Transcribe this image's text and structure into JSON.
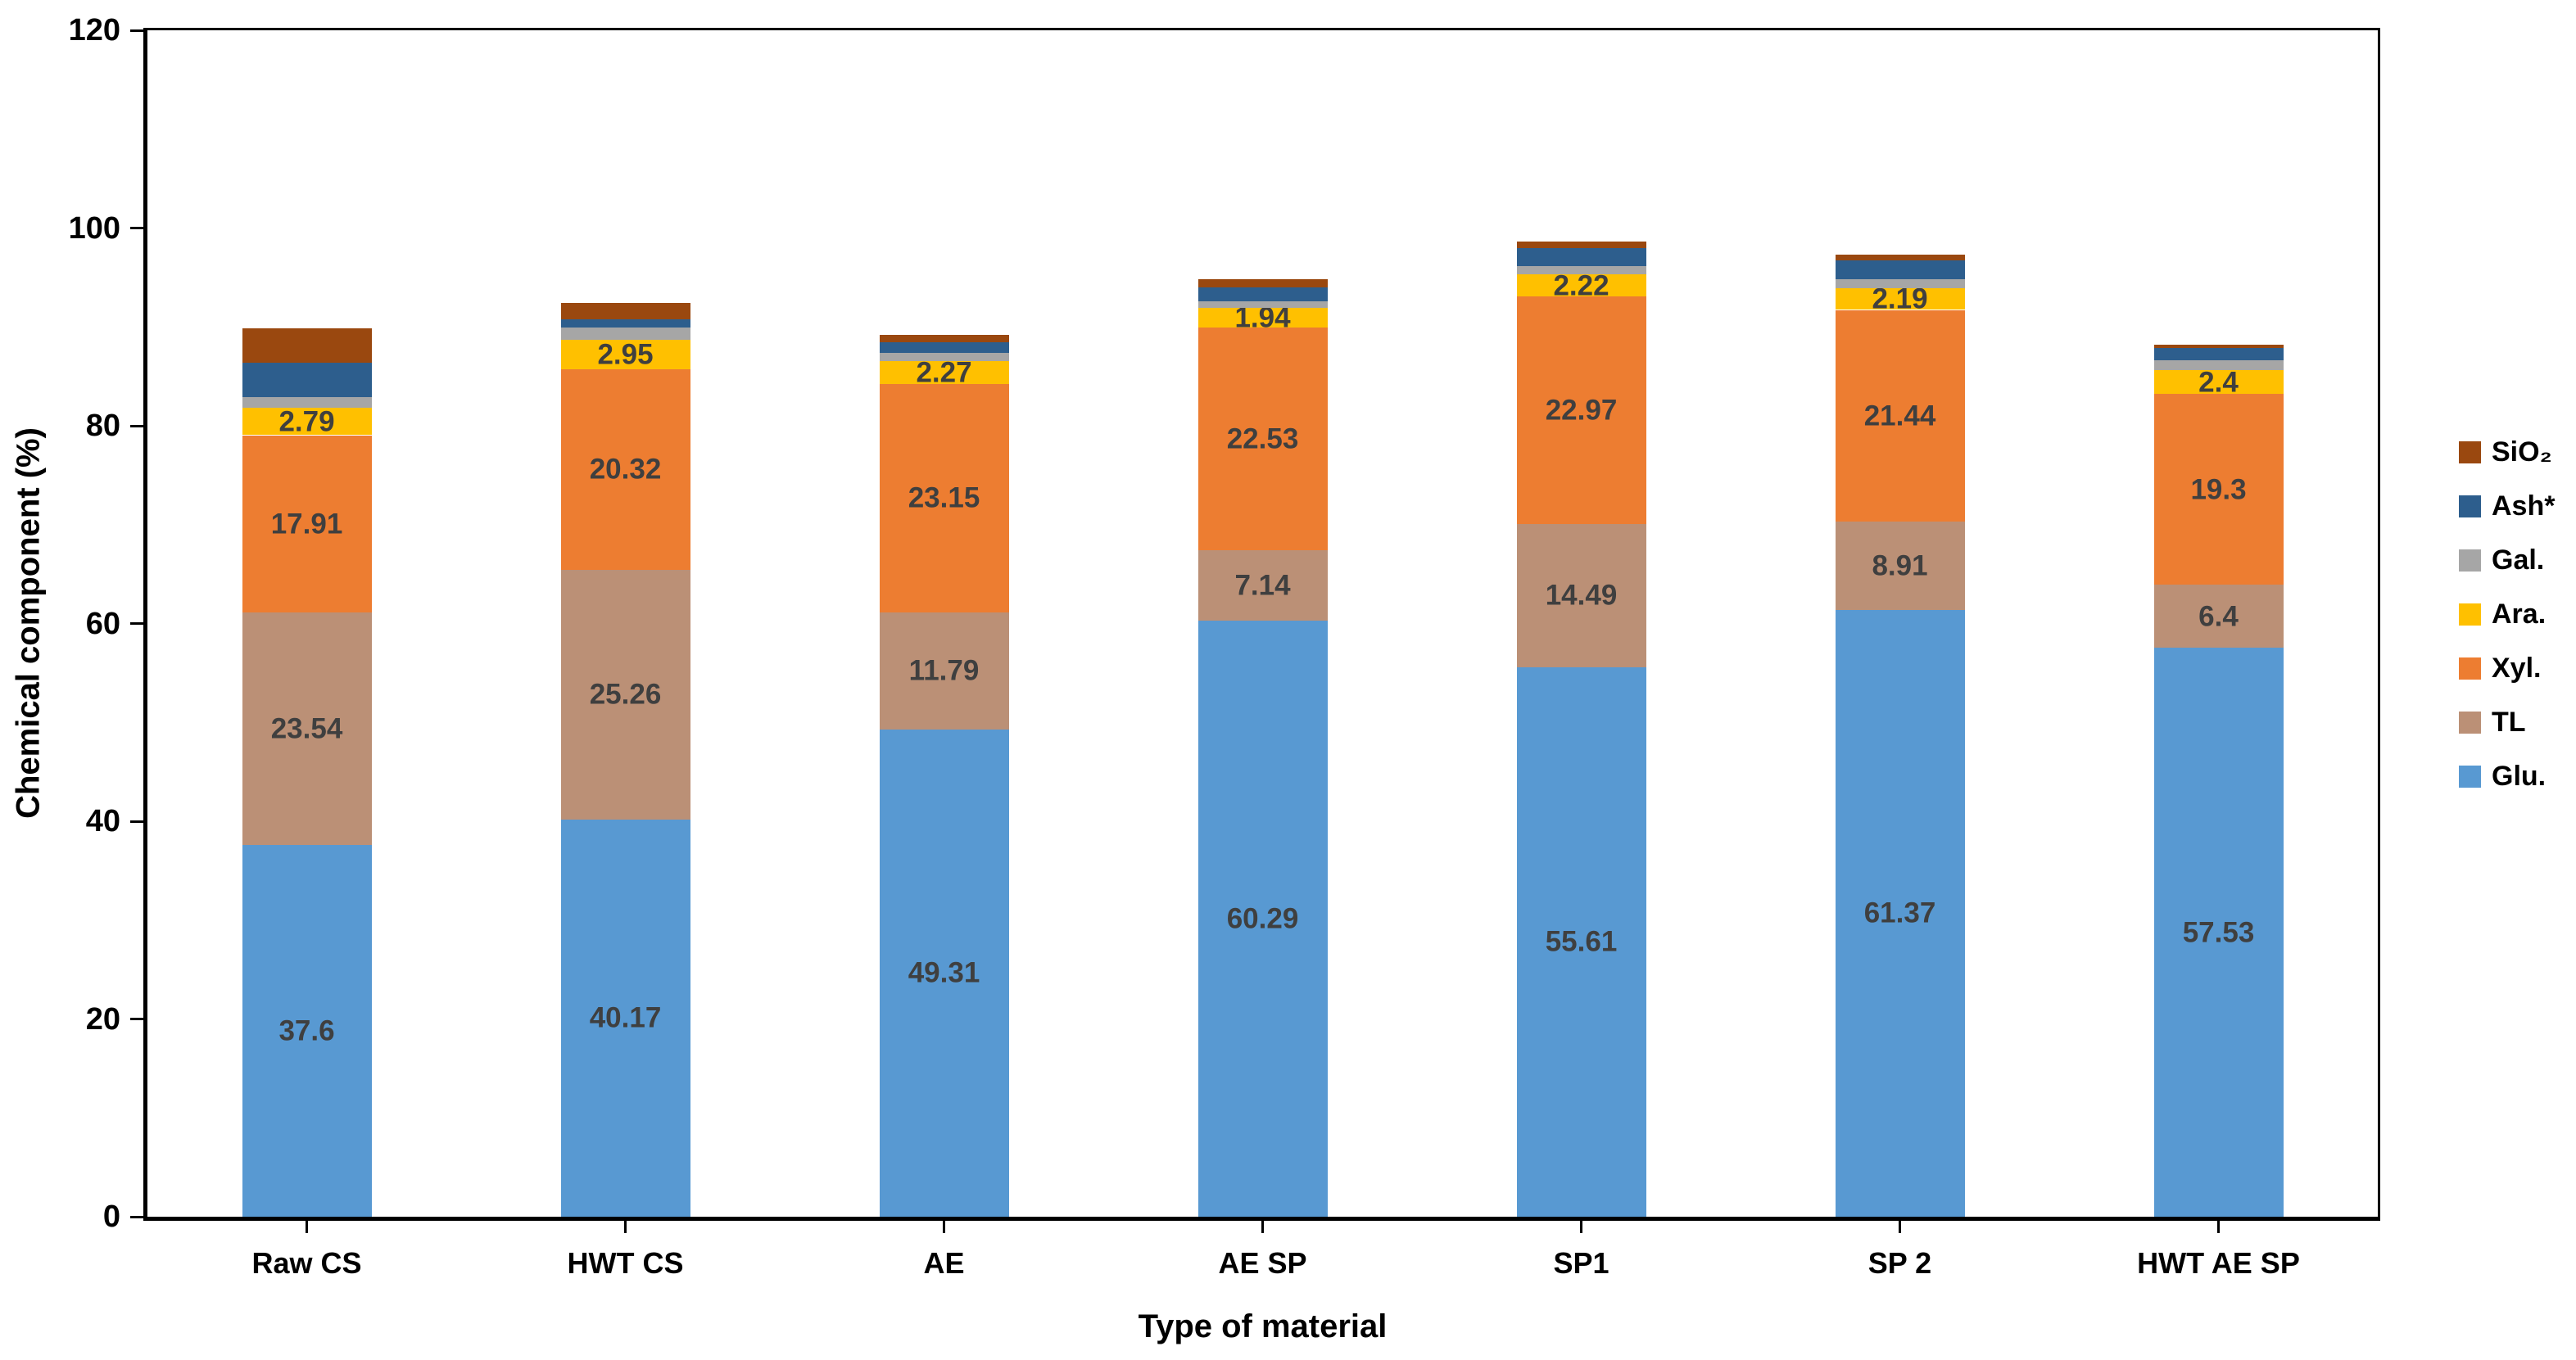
{
  "chart_data": {
    "type": "bar",
    "subtype": "stacked-vertical",
    "title": "",
    "xlabel": "Type of material",
    "ylabel": "Chemical component (%)",
    "ylim": [
      0,
      120
    ],
    "yticks": [
      0,
      20,
      40,
      60,
      80,
      100,
      120
    ],
    "grid": false,
    "legend_position": "right",
    "categories": [
      "Raw CS",
      "HWT CS",
      "AE",
      "AE SP",
      "SP1",
      "SP 2",
      "HWT AE SP"
    ],
    "series": [
      {
        "name": "Glu.",
        "color": "#5899D2",
        "labeled": true,
        "values": [
          37.6,
          40.17,
          49.31,
          60.29,
          55.61,
          61.37,
          57.53
        ],
        "labels": [
          "37.6",
          "40.17",
          "49.31",
          "60.29",
          "55.61",
          "61.37",
          "57.53"
        ]
      },
      {
        "name": "TL",
        "color": "#BB9076",
        "labeled": true,
        "values": [
          23.54,
          25.26,
          11.79,
          7.14,
          14.49,
          8.91,
          6.4
        ],
        "labels": [
          "23.54",
          "25.26",
          "11.79",
          "7.14",
          "14.49",
          "8.91",
          "6.4"
        ]
      },
      {
        "name": "Xyl.",
        "color": "#ED7D31",
        "labeled": true,
        "values": [
          17.91,
          20.32,
          23.15,
          22.53,
          22.97,
          21.44,
          19.3
        ],
        "labels": [
          "17.91",
          "20.32",
          "23.15",
          "22.53",
          "22.97",
          "21.44",
          "19.3"
        ]
      },
      {
        "name": "Ara.",
        "color": "#FFC000",
        "labeled": true,
        "values": [
          2.79,
          2.95,
          2.27,
          1.94,
          2.22,
          2.19,
          2.4
        ],
        "labels": [
          "2.79",
          "2.95",
          "2.27",
          "1.94",
          "2.22",
          "2.19",
          "2.4"
        ]
      },
      {
        "name": "Gal.",
        "color": "#A6A6A6",
        "labeled": false,
        "values": [
          1.05,
          1.2,
          0.85,
          0.7,
          0.9,
          0.95,
          1.0
        ],
        "labels": []
      },
      {
        "name": "Ash*",
        "color": "#2D5E8D",
        "labeled": false,
        "values": [
          3.45,
          0.9,
          1.1,
          1.4,
          1.75,
          1.9,
          1.2
        ],
        "labels": []
      },
      {
        "name": "SiO₂",
        "color": "#9A480F",
        "labeled": false,
        "values": [
          3.5,
          1.6,
          0.75,
          0.8,
          0.7,
          0.55,
          0.4
        ],
        "labels": []
      }
    ],
    "legend_order": [
      "SiO₂",
      "Ash*",
      "Gal.",
      "Ara.",
      "Xyl.",
      "TL",
      "Glu."
    ],
    "label_color": "#3F3F3F",
    "axis_color": "#000000"
  }
}
